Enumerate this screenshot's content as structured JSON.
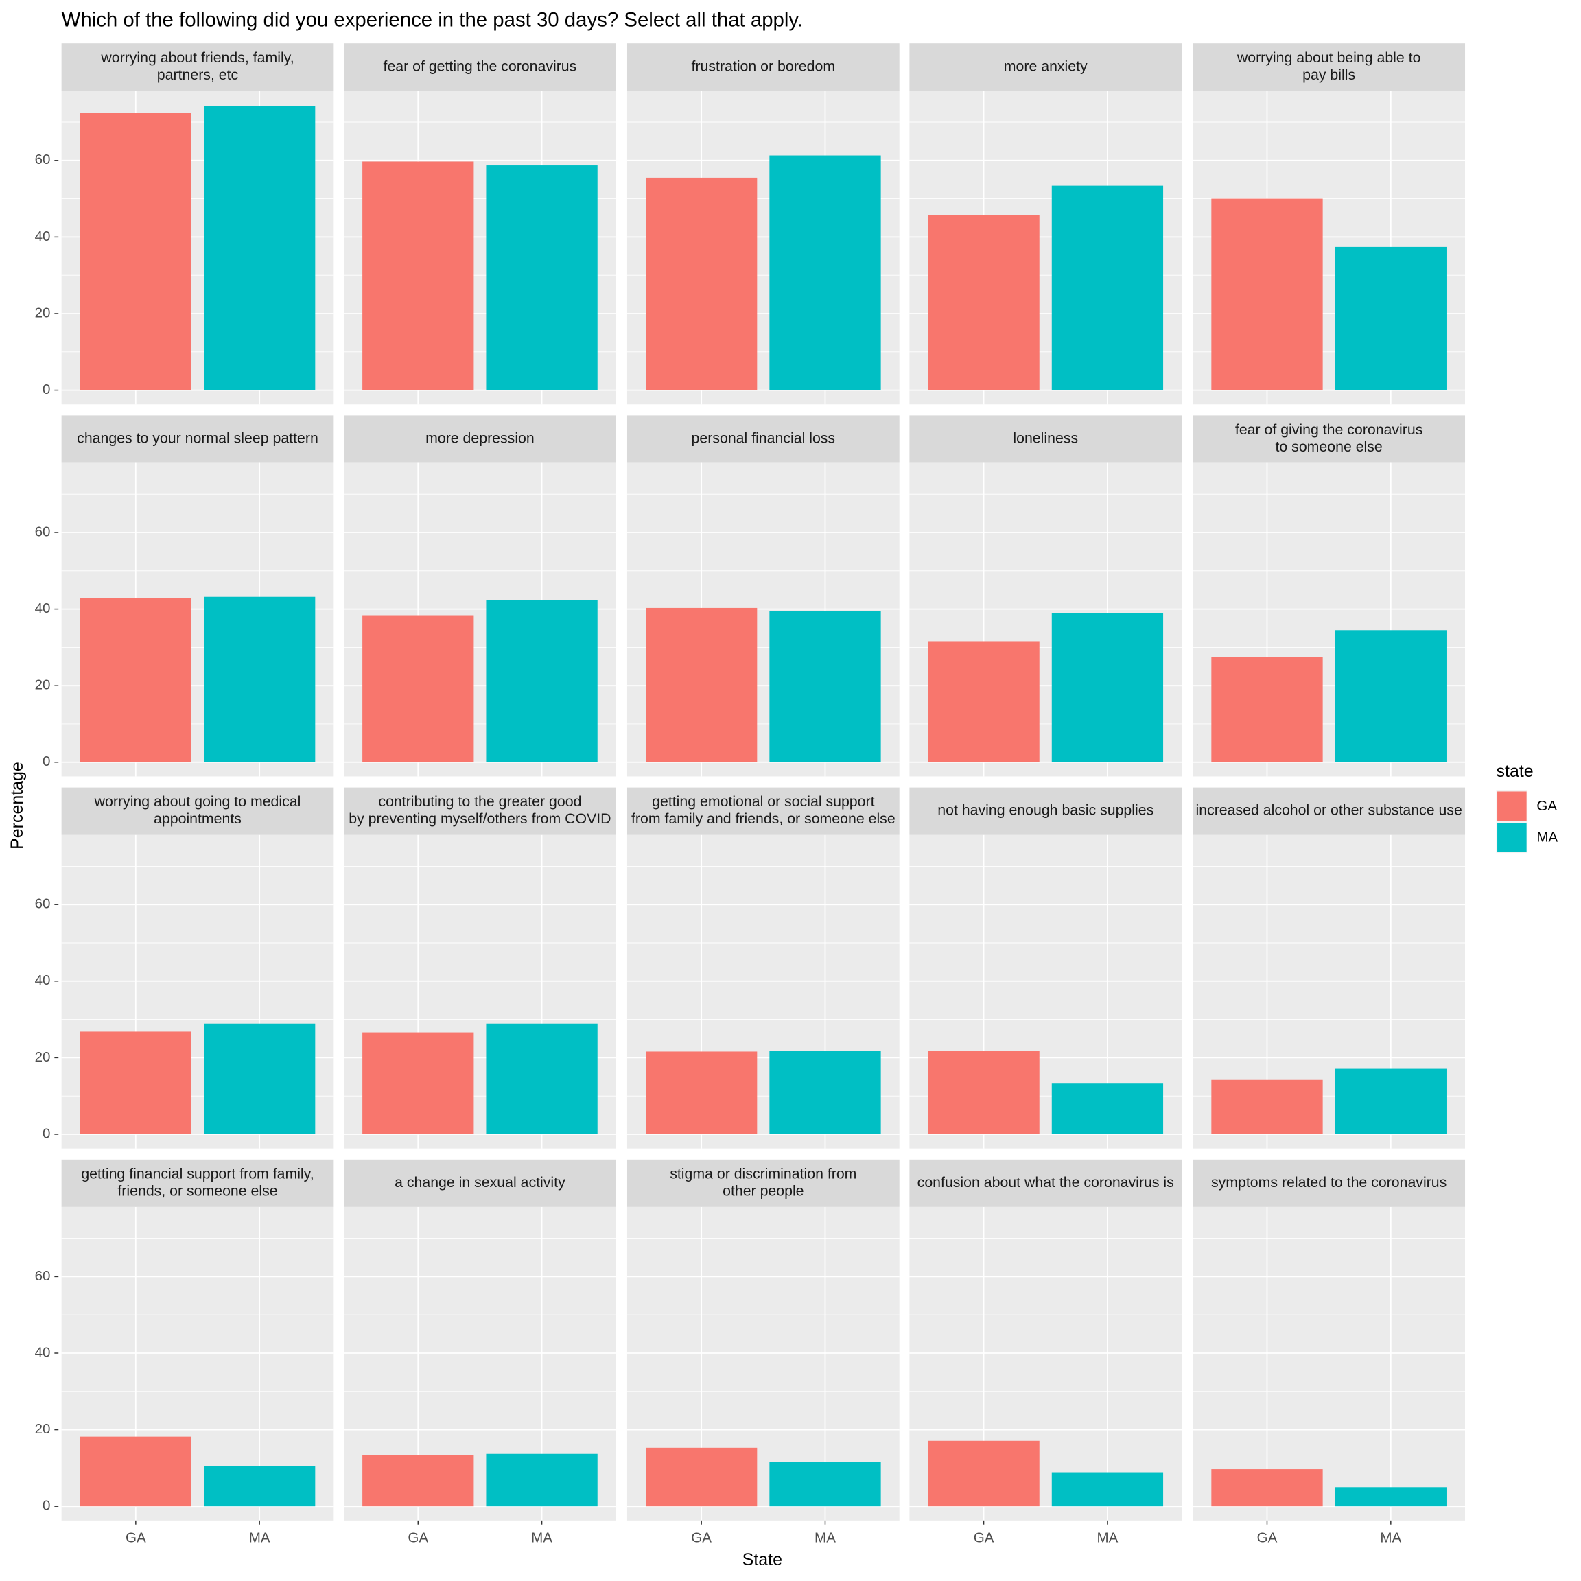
{
  "chart_data": {
    "type": "bar",
    "title": "Which of the following did you experience in the past 30 days? Select all that apply.",
    "x_label": "State",
    "y_label": "Percentage",
    "legend_title": "state",
    "ylim": [
      -3.7,
      78.2
    ],
    "yticks": [
      0,
      20,
      40,
      60
    ],
    "grid": true,
    "minor_grid": true,
    "facets": [
      [
        "worrying about friends, family,",
        "partners, etc"
      ],
      [
        "fear of getting the coronavirus"
      ],
      [
        "frustration or boredom"
      ],
      [
        "more anxiety"
      ],
      [
        "worrying about being able to",
        "pay bills"
      ],
      [
        "changes to your normal sleep pattern"
      ],
      [
        "more depression"
      ],
      [
        "personal financial loss"
      ],
      [
        "loneliness"
      ],
      [
        "fear of giving the coronavirus",
        "to someone else"
      ],
      [
        "worrying about going to medical",
        "appointments"
      ],
      [
        "contributing to the greater good",
        "by preventing myself/others from COVID"
      ],
      [
        "getting emotional or social support",
        "from family and friends, or someone else"
      ],
      [
        "not having enough basic supplies"
      ],
      [
        "increased alcohol or other substance use"
      ],
      [
        "getting financial support from family,",
        "friends, or someone else"
      ],
      [
        "a change in sexual activity"
      ],
      [
        "stigma or discrimination from",
        "other people"
      ],
      [
        "confusion about what the coronavirus is"
      ],
      [
        "symptoms related to the coronavirus"
      ]
    ],
    "series": [
      {
        "name": "GA",
        "color": "#f8766d",
        "values": [
          72.4,
          59.7,
          55.5,
          45.8,
          50.0,
          42.9,
          38.4,
          40.3,
          31.6,
          27.4,
          26.8,
          26.6,
          21.6,
          21.8,
          14.2,
          18.2,
          13.4,
          15.3,
          17.1,
          9.7
        ]
      },
      {
        "name": "MA",
        "color": "#00bfc4",
        "values": [
          74.2,
          58.7,
          61.3,
          53.4,
          37.4,
          43.2,
          42.4,
          39.5,
          38.9,
          34.5,
          28.9,
          28.9,
          21.8,
          13.4,
          17.1,
          10.5,
          13.7,
          11.6,
          8.9,
          5.0
        ]
      }
    ]
  }
}
